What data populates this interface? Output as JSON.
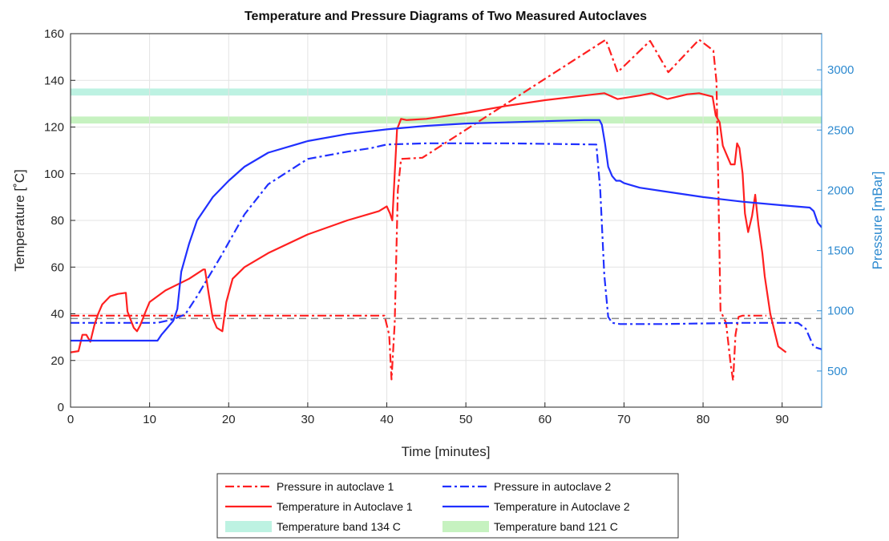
{
  "chart_data": {
    "type": "line",
    "title": "Temperature and Pressure Diagrams of Two Measured Autoclaves",
    "xlabel": "Time [minutes]",
    "ylabel": "Temperature [˚C]",
    "ylabel_right": "Pressure [mBar]",
    "xlim": [
      0,
      95
    ],
    "ylim": [
      0,
      160
    ],
    "ylim_right": [
      200,
      3300
    ],
    "x_ticks": [
      0,
      10,
      20,
      30,
      40,
      50,
      60,
      70,
      80,
      90
    ],
    "y_ticks": [
      0,
      20,
      40,
      60,
      80,
      100,
      120,
      140,
      160
    ],
    "y_ticks_right": [
      500,
      1000,
      1500,
      2000,
      2500,
      3000
    ],
    "grid": true,
    "legend_position": "bottom-center",
    "reference_line": {
      "y": 38,
      "color": "#8a8a8a"
    },
    "bands": [
      {
        "name": "Temperature band 134 C",
        "y_from": 133.5,
        "y_to": 136.5,
        "color": "#bdf2e2"
      },
      {
        "name": "Temperature band 121 C",
        "y_from": 121.5,
        "y_to": 124.5,
        "color": "#c6f2c0"
      }
    ],
    "series": [
      {
        "name": "Pressure in autoclave 1",
        "axis": "right",
        "color": "#ff2020",
        "dash": "dashdot",
        "x": [
          0,
          2,
          38,
          39.7,
          40.3,
          40.6,
          41.0,
          41.4,
          41.8,
          44.5,
          67.7,
          69.2,
          73.3,
          75.6,
          79.5,
          81.3,
          81.7,
          82.2,
          82.9,
          83.5,
          83.8,
          84.1,
          84.5,
          85,
          88
        ],
        "y": [
          960,
          960,
          960,
          960,
          800,
          430,
          900,
          2000,
          2260,
          2270,
          3250,
          2980,
          3240,
          2980,
          3250,
          3160,
          2900,
          1000,
          900,
          550,
          420,
          800,
          950,
          960,
          960
        ]
      },
      {
        "name": "Pressure in autoclave 2",
        "axis": "right",
        "color": "#2030ff",
        "dash": "dashdot",
        "x": [
          0,
          11,
          13,
          14.5,
          16,
          19,
          22,
          25,
          30,
          35,
          38,
          40,
          45,
          55,
          66.5,
          67.0,
          67.5,
          68.0,
          68.5,
          69.5,
          75,
          85,
          92,
          93,
          94,
          95
        ],
        "y": [
          900,
          900,
          930,
          970,
          1120,
          1450,
          1800,
          2050,
          2260,
          2320,
          2350,
          2380,
          2390,
          2390,
          2380,
          2000,
          1300,
          950,
          900,
          890,
          890,
          900,
          900,
          850,
          700,
          680
        ]
      },
      {
        "name": "Temperature in Autoclave 1",
        "axis": "left",
        "color": "#ff2020",
        "dash": "solid",
        "x": [
          0,
          1,
          1.5,
          2,
          2.5,
          3,
          3.5,
          4,
          5,
          6,
          7,
          7.2,
          8,
          8.4,
          8.8,
          9.5,
          10,
          12,
          15,
          16.8,
          17,
          17.5,
          18,
          18.5,
          19.2,
          19.7,
          20.5,
          22,
          25,
          30,
          35,
          39,
          40,
          40.4,
          40.7,
          41.0,
          41.3,
          41.8,
          42.5,
          45,
          50,
          55,
          60,
          65,
          67.5,
          69.2,
          72,
          73.5,
          75.5,
          78,
          79.5,
          81.2,
          81.6,
          82.1,
          82.5,
          83,
          83.5,
          84,
          84.3,
          84.6,
          85.0,
          85.3,
          85.7,
          86.2,
          86.6,
          87.0,
          87.5,
          87.8,
          88.5,
          89.5,
          90.5
        ],
        "y": [
          23.5,
          24,
          31,
          31,
          28,
          35,
          40,
          44,
          47.5,
          48.5,
          49,
          41,
          34,
          32.5,
          35,
          41,
          45,
          50,
          55,
          59,
          59,
          48,
          38,
          34,
          32.5,
          45,
          55,
          60,
          66,
          74,
          80,
          84,
          86,
          83,
          80,
          100,
          119,
          123.5,
          123,
          123.5,
          126,
          129,
          131.5,
          133.5,
          134.5,
          132,
          133.5,
          134.5,
          132,
          134,
          134.5,
          133,
          125,
          122,
          112,
          108,
          104,
          104,
          113,
          111,
          100,
          83,
          75,
          82,
          91,
          78,
          66,
          56,
          40,
          26,
          23.5
        ]
      },
      {
        "name": "Temperature in Autoclave 2",
        "axis": "left",
        "color": "#2030ff",
        "dash": "solid",
        "x": [
          0,
          11,
          11.5,
          12,
          13,
          13.5,
          14,
          15,
          16,
          17,
          18,
          20,
          22,
          25,
          30,
          35,
          40,
          45,
          50,
          55,
          60,
          65,
          66.9,
          67.2,
          67.6,
          68,
          68.5,
          69,
          69.5,
          70,
          72,
          75,
          80,
          85,
          90,
          93.5,
          94,
          94.5,
          95
        ],
        "y": [
          28.5,
          28.5,
          31,
          33,
          37,
          42,
          58,
          70,
          80,
          85,
          90,
          97,
          103,
          109,
          114,
          117,
          119,
          120.5,
          121.5,
          122,
          122.5,
          123,
          123,
          121,
          113,
          103,
          99,
          97,
          97,
          96,
          94,
          92.5,
          90,
          88,
          86.5,
          85.5,
          84,
          79,
          77
        ]
      }
    ]
  },
  "legend": {
    "items": [
      {
        "label": "Pressure in autoclave 1",
        "color": "#ff2020",
        "kind": "dashdot"
      },
      {
        "label": "Pressure in autoclave 2",
        "color": "#2030ff",
        "kind": "dashdot"
      },
      {
        "label": "Temperature in Autoclave 1",
        "color": "#ff2020",
        "kind": "solid"
      },
      {
        "label": "Temperature in Autoclave 2",
        "color": "#2030ff",
        "kind": "solid"
      },
      {
        "label": "Temperature band 134 C",
        "color": "#bdf2e2",
        "kind": "band"
      },
      {
        "label": "Temperature band 121 C",
        "color": "#c6f2c0",
        "kind": "band"
      }
    ]
  }
}
